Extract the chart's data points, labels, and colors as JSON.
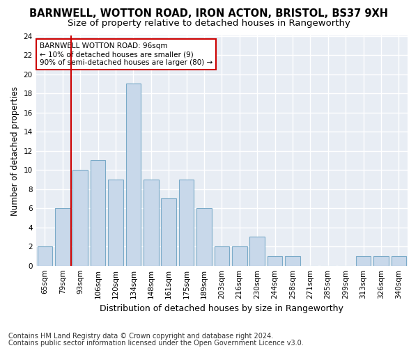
{
  "title1": "BARNWELL, WOTTON ROAD, IRON ACTON, BRISTOL, BS37 9XH",
  "title2": "Size of property relative to detached houses in Rangeworthy",
  "xlabel": "Distribution of detached houses by size in Rangeworthy",
  "ylabel": "Number of detached properties",
  "categories": [
    "65sqm",
    "79sqm",
    "93sqm",
    "106sqm",
    "120sqm",
    "134sqm",
    "148sqm",
    "161sqm",
    "175sqm",
    "189sqm",
    "203sqm",
    "216sqm",
    "230sqm",
    "244sqm",
    "258sqm",
    "271sqm",
    "285sqm",
    "299sqm",
    "313sqm",
    "326sqm",
    "340sqm"
  ],
  "values": [
    2,
    6,
    10,
    11,
    9,
    19,
    9,
    7,
    9,
    6,
    2,
    2,
    3,
    1,
    1,
    0,
    0,
    0,
    1,
    1,
    1
  ],
  "bar_color": "#c8d8ea",
  "bar_edge_color": "#7aaac8",
  "background_color": "#e8edf4",
  "grid_color": "#ffffff",
  "annotation_box_text": "BARNWELL WOTTON ROAD: 96sqm\n← 10% of detached houses are smaller (9)\n90% of semi-detached houses are larger (80) →",
  "vline_x_index": 1.5,
  "vline_color": "#cc0000",
  "annotation_box_color": "#ffffff",
  "annotation_box_edge_color": "#cc0000",
  "ylim": [
    0,
    24
  ],
  "yticks": [
    0,
    2,
    4,
    6,
    8,
    10,
    12,
    14,
    16,
    18,
    20,
    22,
    24
  ],
  "footnote1": "Contains HM Land Registry data © Crown copyright and database right 2024.",
  "footnote2": "Contains public sector information licensed under the Open Government Licence v3.0.",
  "title1_fontsize": 10.5,
  "title2_fontsize": 9.5,
  "xlabel_fontsize": 9,
  "ylabel_fontsize": 8.5,
  "tick_fontsize": 7.5,
  "annot_fontsize": 7.5,
  "footnote_fontsize": 7
}
